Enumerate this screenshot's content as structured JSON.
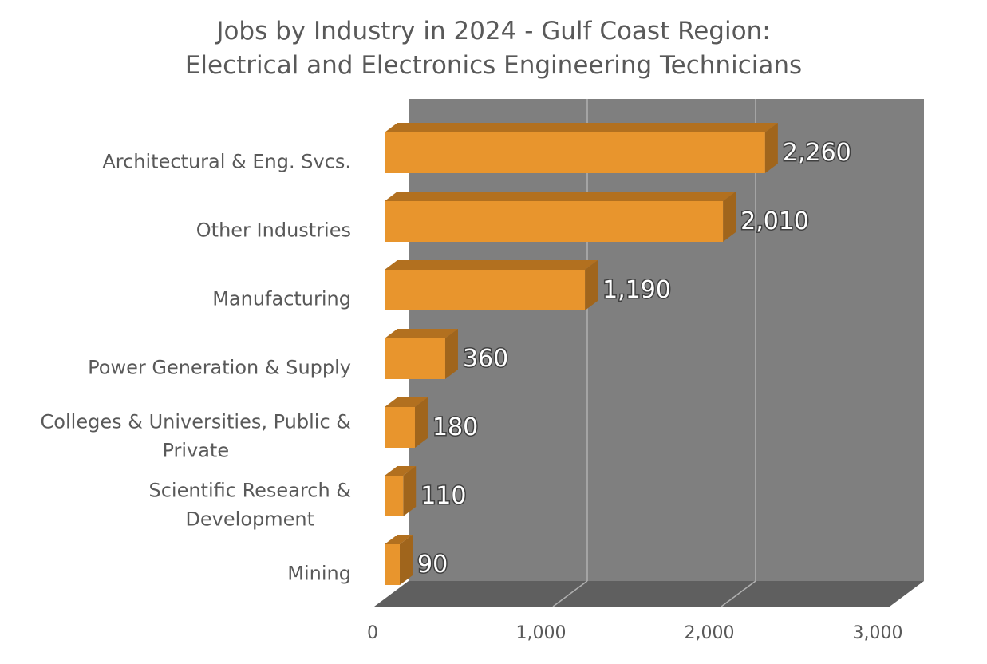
{
  "chart_data": {
    "type": "bar",
    "orientation": "horizontal",
    "three_d": true,
    "title_lines": [
      "Jobs by Industry in 2024 - Gulf Coast Region:",
      "Electrical and Electronics Engineering Technicians"
    ],
    "categories": [
      [
        "Architectural & Eng. Svcs."
      ],
      [
        "Other Industries"
      ],
      [
        "Manufacturing"
      ],
      [
        "Power Generation & Supply"
      ],
      [
        "Colleges & Universities, Public &",
        "Private"
      ],
      [
        "Scientific Research &",
        "Development"
      ],
      [
        "Mining"
      ]
    ],
    "values": [
      2260,
      2010,
      1190,
      360,
      180,
      110,
      90
    ],
    "data_labels": [
      "2,260",
      "2,010",
      "1,190",
      "360",
      "180",
      "110",
      "90"
    ],
    "xlim": [
      0,
      3000
    ],
    "x_ticks": [
      0,
      1000,
      2000,
      3000
    ],
    "x_tick_labels": [
      "0",
      "1,000",
      "2,000",
      "3,000"
    ],
    "xlabel": "",
    "ylabel": "",
    "grid": "vertical",
    "legend": "none",
    "colors": {
      "bar_front": "#E8952D",
      "bar_top": "#B2701F",
      "bar_side": "#A0651C",
      "back_wall": "#7F7F7F",
      "floor": "#5F5F5F",
      "gridline": "#B0B0B0",
      "text": "#595959"
    }
  }
}
